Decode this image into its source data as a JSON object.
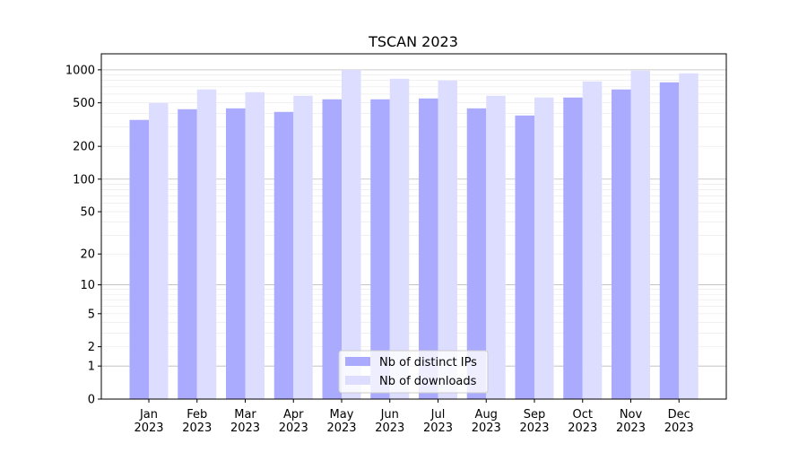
{
  "chart_data": {
    "type": "bar",
    "title": "TSCAN 2023",
    "xlabel": "",
    "ylabel": "",
    "yscale": "log10(1+y)",
    "ylim": [
      0,
      1400
    ],
    "yticks": [
      0,
      1,
      2,
      5,
      10,
      20,
      50,
      100,
      200,
      500,
      1000
    ],
    "grid": true,
    "legend": "lower-center",
    "categories": [
      "Jan\n2023",
      "Feb\n2023",
      "Mar\n2023",
      "Apr\n2023",
      "May\n2023",
      "Jun\n2023",
      "Jul\n2023",
      "Aug\n2023",
      "Sep\n2023",
      "Oct\n2023",
      "Nov\n2023",
      "Dec\n2023"
    ],
    "series": [
      {
        "name": "Nb of distinct IPs",
        "color": "#aaaaff",
        "values": [
          349,
          437,
          445,
          413,
          538,
          538,
          548,
          445,
          383,
          559,
          662,
          769
        ]
      },
      {
        "name": "Nb of downloads",
        "color": "#ddddff",
        "values": [
          499,
          662,
          625,
          580,
          1000,
          829,
          799,
          580,
          559,
          784,
          983,
          929
        ]
      }
    ]
  }
}
